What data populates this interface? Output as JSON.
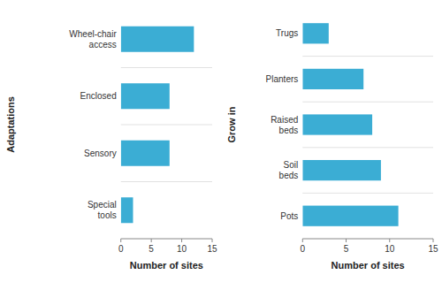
{
  "chart_data": [
    {
      "type": "bar",
      "orientation": "horizontal",
      "ylabel": "Adaptations",
      "xlabel": "Number of sites",
      "categories": [
        "Wheel-chair\naccess",
        "Enclosed",
        "Sensory",
        "Special\ntools"
      ],
      "values": [
        12,
        8,
        8,
        2
      ],
      "color": "#3BADD4",
      "xlim": [
        0,
        15
      ],
      "xticks": [
        0,
        5,
        10,
        15
      ],
      "grid": false
    },
    {
      "type": "bar",
      "orientation": "horizontal",
      "ylabel": "Grow in",
      "xlabel": "Number of sites",
      "categories": [
        "Trugs",
        "Planters",
        "Raised\nbeds",
        "Soil\nbeds",
        "Pots"
      ],
      "values": [
        3,
        7,
        8,
        9,
        11
      ],
      "color": "#3BADD4",
      "xlim": [
        0,
        15
      ],
      "xticks": [
        0,
        5,
        10,
        15
      ],
      "grid": false
    }
  ]
}
